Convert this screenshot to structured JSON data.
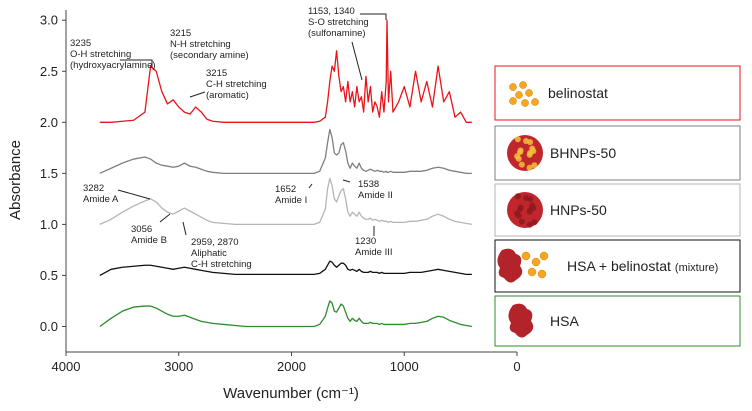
{
  "chart_data": {
    "type": "line",
    "xlabel": "Wavenumber (cm⁻¹)",
    "ylabel": "Absorbance",
    "xlim": [
      4000,
      0
    ],
    "ylim": [
      -0.25,
      3.1
    ],
    "xticks": [
      4000,
      3000,
      2000,
      1000,
      0
    ],
    "yticks": [
      {
        "value": 0,
        "label": "0.0"
      },
      {
        "value": 0.5,
        "label": "0.5"
      },
      {
        "value": 1,
        "label": "1.0"
      },
      {
        "value": 1.5,
        "label": "1.5"
      },
      {
        "value": 2,
        "label": "2.0"
      },
      {
        "value": 2.5,
        "label": "2.5"
      },
      {
        "value": 3,
        "label": "3.0"
      }
    ],
    "x": [
      3700,
      3600,
      3500,
      3400,
      3300,
      3250,
      3200,
      3150,
      3100,
      3050,
      3000,
      2950,
      2900,
      2850,
      2800,
      2750,
      2700,
      2600,
      2500,
      2400,
      2300,
      2200,
      2100,
      2000,
      1900,
      1800,
      1750,
      1700,
      1680,
      1660,
      1640,
      1620,
      1600,
      1580,
      1560,
      1540,
      1520,
      1500,
      1480,
      1460,
      1440,
      1420,
      1400,
      1380,
      1360,
      1340,
      1320,
      1300,
      1280,
      1260,
      1240,
      1220,
      1200,
      1180,
      1160,
      1153,
      1140,
      1120,
      1100,
      1050,
      1000,
      950,
      900,
      850,
      800,
      750,
      700,
      650,
      600,
      550,
      500,
      450,
      400
    ],
    "series": [
      {
        "name": "belinostat",
        "color": "#e8141b",
        "values": [
          2.0,
          2.0,
          2.01,
          2.02,
          2.1,
          2.55,
          2.5,
          2.3,
          2.18,
          2.22,
          2.15,
          2.1,
          2.08,
          2.15,
          2.1,
          2.03,
          2.01,
          2.0,
          2.0,
          2.0,
          2.0,
          2.0,
          2.0,
          2.0,
          2.0,
          2.0,
          2.01,
          2.05,
          2.2,
          2.4,
          2.55,
          2.5,
          2.7,
          2.45,
          2.3,
          2.35,
          2.2,
          2.4,
          2.2,
          2.3,
          2.15,
          2.35,
          2.2,
          2.25,
          2.1,
          2.45,
          2.2,
          2.35,
          2.1,
          2.2,
          2.15,
          2.05,
          2.3,
          2.1,
          2.4,
          3.0,
          2.2,
          2.5,
          2.1,
          2.2,
          2.35,
          2.15,
          2.5,
          2.2,
          2.4,
          2.15,
          2.55,
          2.2,
          2.3,
          2.05,
          2.1,
          2.0,
          2.0
        ]
      },
      {
        "name": "BHNPs-50",
        "color": "#7f7f7f",
        "values": [
          1.5,
          1.55,
          1.6,
          1.64,
          1.66,
          1.64,
          1.6,
          1.58,
          1.57,
          1.56,
          1.57,
          1.6,
          1.57,
          1.56,
          1.54,
          1.52,
          1.51,
          1.5,
          1.5,
          1.5,
          1.5,
          1.5,
          1.5,
          1.5,
          1.5,
          1.5,
          1.52,
          1.65,
          1.8,
          1.93,
          1.85,
          1.7,
          1.68,
          1.7,
          1.78,
          1.8,
          1.72,
          1.6,
          1.55,
          1.6,
          1.57,
          1.55,
          1.6,
          1.55,
          1.53,
          1.52,
          1.53,
          1.54,
          1.53,
          1.52,
          1.53,
          1.52,
          1.52,
          1.51,
          1.52,
          1.51,
          1.51,
          1.52,
          1.51,
          1.51,
          1.51,
          1.52,
          1.52,
          1.52,
          1.53,
          1.55,
          1.56,
          1.55,
          1.53,
          1.52,
          1.51,
          1.5,
          1.5
        ]
      },
      {
        "name": "HNPs-50",
        "color": "#b5b5b5",
        "values": [
          1.0,
          1.05,
          1.12,
          1.18,
          1.23,
          1.25,
          1.22,
          1.16,
          1.12,
          1.1,
          1.13,
          1.16,
          1.13,
          1.1,
          1.07,
          1.04,
          1.02,
          1.01,
          1.0,
          1.0,
          1.0,
          1.0,
          1.0,
          1.0,
          1.0,
          1.0,
          1.02,
          1.15,
          1.35,
          1.45,
          1.38,
          1.25,
          1.22,
          1.28,
          1.33,
          1.35,
          1.25,
          1.12,
          1.08,
          1.12,
          1.1,
          1.08,
          1.12,
          1.08,
          1.06,
          1.05,
          1.05,
          1.06,
          1.04,
          1.05,
          1.04,
          1.03,
          1.04,
          1.03,
          1.03,
          1.03,
          1.02,
          1.03,
          1.02,
          1.02,
          1.02,
          1.03,
          1.03,
          1.04,
          1.05,
          1.08,
          1.1,
          1.08,
          1.05,
          1.03,
          1.02,
          1.01,
          1.0
        ]
      },
      {
        "name": "HSA + belinostat",
        "name_note": "(mixture)",
        "color": "#111111",
        "values": [
          0.5,
          0.56,
          0.58,
          0.59,
          0.6,
          0.6,
          0.59,
          0.58,
          0.57,
          0.56,
          0.57,
          0.58,
          0.57,
          0.56,
          0.55,
          0.54,
          0.53,
          0.52,
          0.51,
          0.51,
          0.51,
          0.51,
          0.51,
          0.51,
          0.51,
          0.51,
          0.52,
          0.56,
          0.6,
          0.64,
          0.63,
          0.6,
          0.58,
          0.6,
          0.62,
          0.62,
          0.6,
          0.56,
          0.55,
          0.56,
          0.55,
          0.54,
          0.56,
          0.54,
          0.53,
          0.53,
          0.53,
          0.54,
          0.53,
          0.53,
          0.53,
          0.52,
          0.53,
          0.52,
          0.52,
          0.52,
          0.52,
          0.52,
          0.52,
          0.52,
          0.52,
          0.53,
          0.53,
          0.53,
          0.54,
          0.55,
          0.56,
          0.55,
          0.54,
          0.53,
          0.52,
          0.51,
          0.51
        ]
      },
      {
        "name": "HSA",
        "color": "#2e8b2e",
        "values": [
          0.0,
          0.08,
          0.15,
          0.19,
          0.2,
          0.2,
          0.18,
          0.15,
          0.12,
          0.1,
          0.1,
          0.11,
          0.09,
          0.07,
          0.05,
          0.04,
          0.03,
          0.02,
          0.01,
          0.0,
          0.0,
          0.0,
          0.0,
          0.0,
          0.0,
          0.0,
          0.02,
          0.1,
          0.18,
          0.25,
          0.23,
          0.15,
          0.14,
          0.18,
          0.22,
          0.2,
          0.14,
          0.08,
          0.05,
          0.08,
          0.06,
          0.05,
          0.08,
          0.05,
          0.03,
          0.03,
          0.03,
          0.04,
          0.03,
          0.03,
          0.03,
          0.02,
          0.03,
          0.02,
          0.02,
          0.02,
          0.02,
          0.02,
          0.02,
          0.02,
          0.02,
          0.03,
          0.03,
          0.04,
          0.05,
          0.08,
          0.1,
          0.09,
          0.06,
          0.04,
          0.02,
          0.01,
          0.0
        ]
      }
    ],
    "annotations": [
      {
        "lines": [
          "3235",
          "O-H stretching",
          "(hydroxyacrylamine)"
        ]
      },
      {
        "lines": [
          "3215",
          "N-H stretching",
          "(secondary amine)"
        ]
      },
      {
        "lines": [
          "3215",
          "C-H stretching",
          "(aromatic)"
        ]
      },
      {
        "lines": [
          "1153, 1340",
          "S-O stretching",
          "(sulfonamine)"
        ]
      },
      {
        "lines": [
          "3282",
          "Amide A"
        ]
      },
      {
        "lines": [
          "3056",
          "Amide B"
        ]
      },
      {
        "lines": [
          "2959, 2870",
          "Aliphatic",
          "C-H stretching"
        ]
      },
      {
        "lines": [
          "1652",
          "Amide I"
        ]
      },
      {
        "lines": [
          "1538",
          "Amide II"
        ]
      },
      {
        "lines": [
          "1230",
          "Amide III"
        ]
      }
    ]
  }
}
